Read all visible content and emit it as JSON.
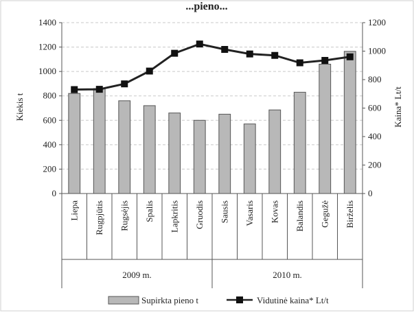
{
  "chart_data": {
    "type": "bar",
    "title": "...pieno...",
    "categories": [
      "Liepa",
      "Rugpjūtis",
      "Rugsėjis",
      "Spalis",
      "Lapkritis",
      "Gruodis",
      "Sausis",
      "Vasaris",
      "Kovas",
      "Balandis",
      "Gegužė",
      "Birželis"
    ],
    "groups": [
      {
        "label": "2009 m.",
        "count": 6
      },
      {
        "label": "2010 m.",
        "count": 6
      }
    ],
    "series": [
      {
        "name": "Supirkta pieno t",
        "kind": "bar",
        "axis": "left",
        "values": [
          820,
          860,
          760,
          720,
          660,
          600,
          650,
          570,
          685,
          830,
          1060,
          1165
        ]
      },
      {
        "name": "Vidutinė kaina* Lt/t",
        "kind": "line",
        "axis": "right",
        "values": [
          730,
          732,
          770,
          860,
          985,
          1050,
          1012,
          980,
          970,
          918,
          935,
          960
        ]
      }
    ],
    "ylabel": "Kiekis t",
    "y2label": "Kaina* Lt/t",
    "ylim": [
      0,
      1400
    ],
    "y2lim": [
      0,
      1200
    ],
    "yticks": [
      0,
      200,
      400,
      600,
      800,
      1000,
      1200,
      1400
    ],
    "y2ticks": [
      0,
      200,
      400,
      600,
      800,
      1000,
      1200
    ],
    "grid": true,
    "legend": "bottom",
    "colors": {
      "bar_fill": "#b8b8b8",
      "bar_stroke": "#555555",
      "line": "#222222",
      "grid": "#c8c8c8"
    }
  }
}
